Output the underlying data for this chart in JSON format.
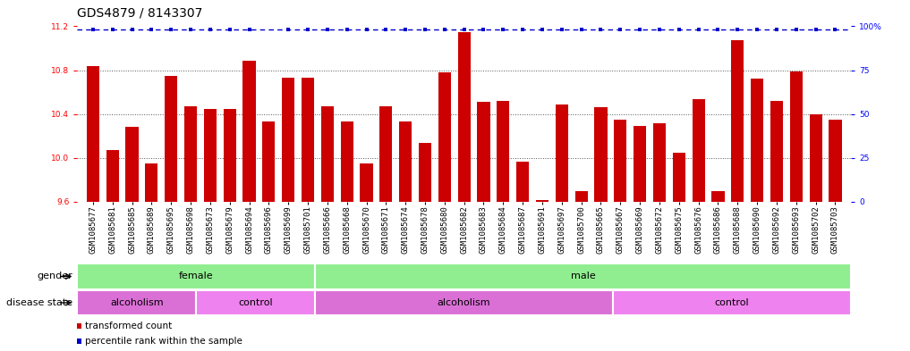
{
  "title": "GDS4879 / 8143307",
  "samples": [
    "GSM1085677",
    "GSM1085681",
    "GSM1085685",
    "GSM1085689",
    "GSM1085695",
    "GSM1085698",
    "GSM1085673",
    "GSM1085679",
    "GSM1085694",
    "GSM1085696",
    "GSM1085699",
    "GSM1085701",
    "GSM1085666",
    "GSM1085668",
    "GSM1085670",
    "GSM1085671",
    "GSM1085674",
    "GSM1085678",
    "GSM1085680",
    "GSM1085682",
    "GSM1085683",
    "GSM1085684",
    "GSM1085687",
    "GSM1085691",
    "GSM1085697",
    "GSM1085700",
    "GSM1085665",
    "GSM1085667",
    "GSM1085669",
    "GSM1085672",
    "GSM1085675",
    "GSM1085676",
    "GSM1085686",
    "GSM1085688",
    "GSM1085690",
    "GSM1085692",
    "GSM1085693",
    "GSM1085702",
    "GSM1085703"
  ],
  "values": [
    10.84,
    10.07,
    10.28,
    9.95,
    10.75,
    10.47,
    10.45,
    10.45,
    10.89,
    10.33,
    10.73,
    10.73,
    10.47,
    10.33,
    9.95,
    10.47,
    10.33,
    10.14,
    10.78,
    11.15,
    10.51,
    10.52,
    9.97,
    9.62,
    10.49,
    9.7,
    10.46,
    10.35,
    10.29,
    10.32,
    10.05,
    10.54,
    9.7,
    11.07,
    10.72,
    10.52,
    10.79,
    10.4,
    10.35
  ],
  "percentile_show": [
    true,
    true,
    true,
    true,
    true,
    true,
    true,
    true,
    true,
    false,
    true,
    true,
    true,
    true,
    true,
    true,
    true,
    true,
    true,
    true,
    true,
    true,
    true,
    true,
    true,
    true,
    true,
    true,
    true,
    true,
    true,
    true,
    true,
    true,
    true,
    true,
    true,
    true,
    true
  ],
  "ylim_left": [
    9.6,
    11.2
  ],
  "ylim_right": [
    0,
    100
  ],
  "bar_color": "#CC0000",
  "percentile_color": "#0000CC",
  "background_color": "#ffffff",
  "title_fontsize": 10,
  "tick_fontsize": 6.5,
  "annotation_fontsize": 8,
  "grid_color": "#555555",
  "yticks_left": [
    9.6,
    10.0,
    10.4,
    10.8,
    11.2
  ],
  "yticks_right": [
    0,
    25,
    50,
    75,
    100
  ],
  "ytick_labels_right": [
    "0",
    "25",
    "50",
    "75",
    "100%"
  ],
  "gender_segs": [
    {
      "label": "female",
      "start": 0,
      "end": 11,
      "color": "#90EE90"
    },
    {
      "label": "male",
      "start": 12,
      "end": 38,
      "color": "#90EE90"
    }
  ],
  "disease_segs": [
    {
      "label": "alcoholism",
      "start": 0,
      "end": 5,
      "color": "#DA70D6"
    },
    {
      "label": "control",
      "start": 6,
      "end": 11,
      "color": "#EE82EE"
    },
    {
      "label": "alcoholism",
      "start": 12,
      "end": 26,
      "color": "#DA70D6"
    },
    {
      "label": "control",
      "start": 27,
      "end": 38,
      "color": "#EE82EE"
    }
  ]
}
